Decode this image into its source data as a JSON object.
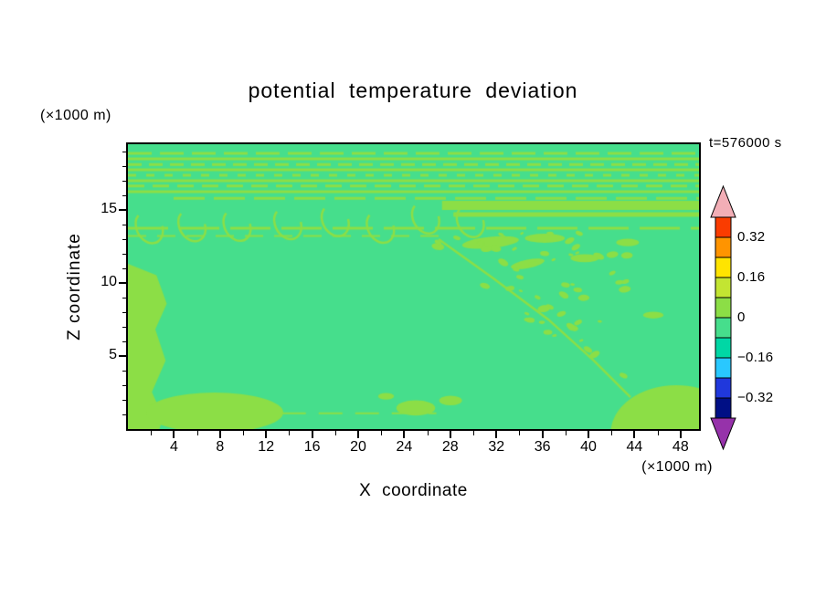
{
  "title": "potential temperature deviation",
  "timestamp": "t=576000 s",
  "axes": {
    "x": {
      "label": "X coordinate",
      "unit": "(×1000 m)",
      "min": 0,
      "max": 49.6,
      "major_ticks": [
        4,
        8,
        12,
        16,
        20,
        24,
        28,
        32,
        36,
        40,
        44,
        48
      ],
      "minor_step": 2
    },
    "z": {
      "label": "Z coordinate",
      "unit": "(×1000 m)",
      "min": 0,
      "max": 19.5,
      "major_ticks": [
        5,
        10,
        15
      ],
      "minor_step": 1
    }
  },
  "colorbar": {
    "labels": [
      "0.32",
      "0.16",
      "0",
      "−0.16",
      "−0.32"
    ],
    "band_colors": [
      "#FA3C00",
      "#FF9400",
      "#FFE400",
      "#C3E532",
      "#8CDE46",
      "#46DE8C",
      "#00D7A5",
      "#29C8FF",
      "#2038DC",
      "#000F85"
    ],
    "arrow_top_color": "#F2AEB6",
    "arrow_bottom_color": "#9632AA"
  },
  "chart_data": {
    "type": "heatmap",
    "title": "potential temperature deviation",
    "xlabel": "X coordinate (×1000 m)",
    "ylabel": "Z coordinate (×1000 m)",
    "xlim": [
      0,
      49.6
    ],
    "ylim": [
      0,
      19.5
    ],
    "time_annotation": "t=576000 s",
    "contour_levels": [
      0.4,
      0.32,
      0.24,
      0.16,
      0.08,
      0,
      -0.08,
      -0.16,
      -0.24,
      -0.32,
      -0.4
    ],
    "labeled_levels": [
      0.32,
      0.16,
      0,
      -0.16,
      -0.32
    ],
    "band_colors_top_to_bottom": [
      "#FA3C00",
      "#FF9400",
      "#FFE400",
      "#C3E532",
      "#8CDE46",
      "#46DE8C",
      "#00D7A5",
      "#29C8FF",
      "#2038DC",
      "#000F85"
    ],
    "field_summary": "Deviation is near zero everywhere shown: background in the −0.08–0 band (spring green) with 0–0.08 band (yellow-green) structures — fine horizontal wave stripes near the domain top (z≈16–19), billow hooks at z≈13–15, a speckled turbulent wedge descending from (x≈25,z≈13) to (x≈35,z≈3), patches along the left wall, and near-surface blobs at x≈5–15 and x≈44–50.",
    "field": {
      "background": "#46DE8C",
      "feature_color": "#8CDE46",
      "stripes": [
        {
          "y": 0.032,
          "x0": 0,
          "x1": 1,
          "h": 3,
          "dash": [
            26,
            9
          ]
        },
        {
          "y": 0.051,
          "x0": 0,
          "x1": 1,
          "h": 3
        },
        {
          "y": 0.071,
          "x0": 0,
          "x1": 1,
          "h": 3,
          "dash": [
            15,
            8
          ]
        },
        {
          "y": 0.09,
          "x0": 0,
          "x1": 1,
          "h": 3
        },
        {
          "y": 0.109,
          "x0": 0,
          "x1": 1,
          "h": 3,
          "dash": [
            9,
            11
          ]
        },
        {
          "y": 0.128,
          "x0": 0,
          "x1": 1,
          "h": 3
        },
        {
          "y": 0.147,
          "x0": 0,
          "x1": 1,
          "h": 3,
          "dash": [
            18,
            9
          ]
        },
        {
          "y": 0.167,
          "x0": 0,
          "x1": 1,
          "h": 3
        },
        {
          "y": 0.19,
          "x0": 0.08,
          "x1": 1,
          "h": 3,
          "dash": [
            34,
            10
          ]
        },
        {
          "y": 0.215,
          "x0": 0.55,
          "x1": 1,
          "h": 10
        },
        {
          "y": 0.247,
          "x0": 0.57,
          "x1": 1,
          "h": 5
        },
        {
          "y": 0.295,
          "x0": 0,
          "x1": 1,
          "h": 3,
          "dash": [
            44,
            12
          ]
        },
        {
          "y": 0.322,
          "x0": 0,
          "x1": 0.56,
          "h": 2,
          "dash": [
            20,
            12
          ]
        },
        {
          "y": 0.945,
          "x0": 0.27,
          "x1": 0.54,
          "h": 2,
          "dash": [
            26,
            14
          ]
        }
      ],
      "hooks": {
        "n": 8,
        "x0": 0.035,
        "x1": 0.6,
        "cy": 0.28,
        "rx": 0.022,
        "ry": 0.058,
        "seed": 5
      },
      "left_strip": [
        [
          0,
          0.42
        ],
        [
          0.05,
          0.46
        ],
        [
          0.068,
          0.56
        ],
        [
          0.048,
          0.65
        ],
        [
          0.066,
          0.76
        ],
        [
          0.042,
          0.87
        ],
        [
          0.062,
          0.96
        ],
        [
          0.055,
          1
        ],
        [
          0,
          1
        ]
      ],
      "blobs": [
        {
          "cx": 0.152,
          "cy": 0.942,
          "rx": 0.12,
          "ry": 0.07,
          "rot": 0
        },
        {
          "cx": 0.96,
          "cy": 1.016,
          "rx": 0.115,
          "ry": 0.17,
          "rot": 0
        },
        {
          "cx": 0.504,
          "cy": 0.926,
          "rx": 0.034,
          "ry": 0.027,
          "rot": 0
        },
        {
          "cx": 0.565,
          "cy": 0.9,
          "rx": 0.02,
          "ry": 0.017,
          "rot": 0
        },
        {
          "cx": 0.452,
          "cy": 0.885,
          "rx": 0.014,
          "ry": 0.012,
          "rot": 0
        },
        {
          "cx": 0.635,
          "cy": 0.345,
          "rx": 0.05,
          "ry": 0.02,
          "rot": -0.1
        },
        {
          "cx": 0.73,
          "cy": 0.33,
          "rx": 0.035,
          "ry": 0.016,
          "rot": 0
        },
        {
          "cx": 0.7,
          "cy": 0.42,
          "rx": 0.03,
          "ry": 0.015,
          "rot": -0.2
        },
        {
          "cx": 0.8,
          "cy": 0.4,
          "rx": 0.025,
          "ry": 0.014,
          "rot": 0
        },
        {
          "cx": 0.875,
          "cy": 0.345,
          "rx": 0.02,
          "ry": 0.013,
          "rot": 0
        },
        {
          "cx": 0.92,
          "cy": 0.6,
          "rx": 0.018,
          "ry": 0.012,
          "rot": 0
        }
      ],
      "speckles": {
        "seed": 11,
        "n": 100,
        "x0": 0.52,
        "x1": 0.88,
        "y0": 0.31,
        "y1": 0.89,
        "rmin": 2,
        "rmax": 7,
        "line_x": 0.544,
        "line_y": 0.333,
        "slope": 1.65,
        "margin": 0.04
      },
      "boundary_curve": [
        [
          0.544,
          0.333
        ],
        [
          0.64,
          0.471
        ],
        [
          0.736,
          0.615
        ],
        [
          0.816,
          0.76
        ],
        [
          0.88,
          0.888
        ]
      ]
    }
  }
}
